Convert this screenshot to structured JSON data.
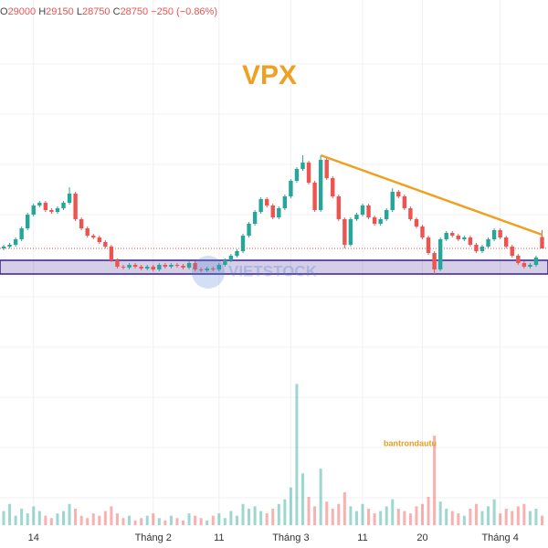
{
  "chart_data": {
    "type": "candlestick",
    "title": "VPX",
    "ohlc_labels": [
      "O",
      "H",
      "L",
      "C"
    ],
    "change_label": "−250 (−0.86%)",
    "annotation": "bantrondautu",
    "watermark": "VIETSTOCK",
    "up_color": "#26a69a",
    "down_color": "#ef5350",
    "title_color": "#f0a020",
    "trendline_color": "#f0a020",
    "zone_color": "#3a1f8c",
    "ylim": [
      26590,
      34190
    ],
    "volume_ylim": [
      0,
      320
    ],
    "xticks": [
      {
        "value": 5,
        "label": "14"
      },
      {
        "value": 25,
        "label": "Tháng 2"
      },
      {
        "value": 36,
        "label": "11"
      },
      {
        "value": 48,
        "label": "Tháng 3"
      },
      {
        "value": 60,
        "label": "11"
      },
      {
        "value": 70,
        "label": "20"
      },
      {
        "value": 83,
        "label": "Tháng 4"
      }
    ],
    "support_zone": [
      28190,
      28490
    ],
    "trendline": {
      "start": {
        "index": 53,
        "value": 30790
      },
      "end": {
        "index": 90,
        "value": 29050
      }
    },
    "open": [
      28750,
      28790,
      28830,
      28950,
      29190,
      29490,
      29690,
      29750,
      29590,
      29550,
      29630,
      29750,
      29950,
      29390,
      29190,
      29030,
      28990,
      28890,
      28790,
      28490,
      28350,
      28330,
      28390,
      28350,
      28310,
      28350,
      28290,
      28390,
      28350,
      28390,
      28370,
      28330,
      28430,
      28290,
      28270,
      28310,
      28290,
      28390,
      28490,
      28590,
      28690,
      29030,
      29290,
      29550,
      29830,
      29690,
      29430,
      29630,
      29890,
      30230,
      30490,
      30630,
      30190,
      29590,
      30690,
      30290,
      29890,
      29390,
      28830,
      29390,
      29490,
      29690,
      29430,
      29290,
      29390,
      29590,
      29990,
      29890,
      29630,
      29390,
      29230,
      28990,
      28650,
      28290,
      28950,
      29090,
      29030,
      28950,
      28990,
      28830,
      28690,
      28790,
      28950,
      29150,
      28990,
      28790,
      28590,
      28430,
      28350,
      28390,
      29000
    ],
    "high": [
      28830,
      28870,
      28990,
      29230,
      29530,
      29730,
      29790,
      29790,
      29630,
      29670,
      29790,
      30090,
      29990,
      29430,
      29230,
      29070,
      29030,
      28930,
      28830,
      28530,
      28390,
      28430,
      28430,
      28390,
      28390,
      28390,
      28430,
      28430,
      28430,
      28430,
      28410,
      28470,
      28470,
      28330,
      28350,
      28350,
      28430,
      28530,
      28630,
      28730,
      29070,
      29330,
      29590,
      29870,
      29870,
      29730,
      29670,
      29930,
      30270,
      30530,
      30790,
      30670,
      30230,
      30790,
      30730,
      30330,
      29930,
      29430,
      29430,
      29530,
      29730,
      29730,
      29470,
      29430,
      29630,
      30070,
      30030,
      29930,
      29670,
      29430,
      29270,
      29030,
      28690,
      28990,
      29130,
      29130,
      29070,
      29030,
      29030,
      28870,
      28830,
      28990,
      29190,
      29190,
      29030,
      28830,
      28630,
      28470,
      28430,
      28590,
      29150
    ],
    "low": [
      28710,
      28750,
      28790,
      28910,
      29150,
      29450,
      29650,
      29550,
      29510,
      29510,
      29590,
      29710,
      29350,
      29150,
      28990,
      28950,
      28850,
      28750,
      28450,
      28310,
      28290,
      28290,
      28310,
      28270,
      28270,
      28250,
      28250,
      28310,
      28310,
      28330,
      28290,
      28290,
      28250,
      28230,
      28230,
      28250,
      28250,
      28350,
      28450,
      28550,
      28650,
      28990,
      29250,
      29510,
      29650,
      29390,
      29390,
      29590,
      29850,
      30190,
      30450,
      30150,
      29550,
      29550,
      30250,
      29850,
      29350,
      28750,
      28790,
      29350,
      29450,
      29390,
      29250,
      29250,
      29350,
      29550,
      29850,
      29590,
      29350,
      29190,
      28950,
      28610,
      28190,
      28250,
      28910,
      28990,
      28910,
      28910,
      28790,
      28650,
      28650,
      28750,
      28910,
      28950,
      28750,
      28550,
      28390,
      28310,
      28310,
      28350,
      28750
    ],
    "close": [
      28790,
      28830,
      28950,
      29190,
      29490,
      29690,
      29750,
      29590,
      29550,
      29630,
      29750,
      29950,
      29390,
      29190,
      29030,
      28990,
      28890,
      28790,
      28490,
      28350,
      28330,
      28390,
      28350,
      28310,
      28350,
      28290,
      28390,
      28350,
      28390,
      28370,
      28330,
      28430,
      28290,
      28270,
      28310,
      28290,
      28390,
      28490,
      28590,
      28690,
      29030,
      29290,
      29550,
      29830,
      29690,
      29430,
      29630,
      29890,
      30230,
      30490,
      30630,
      30190,
      29590,
      30690,
      30290,
      29890,
      29390,
      28830,
      29390,
      29490,
      29690,
      29430,
      29290,
      29390,
      29590,
      29990,
      29890,
      29630,
      29390,
      29230,
      28990,
      28650,
      28290,
      28950,
      29090,
      29030,
      28950,
      28990,
      28830,
      28690,
      28790,
      28950,
      29150,
      28990,
      28790,
      28590,
      28430,
      28350,
      28390,
      28550,
      28750
    ],
    "volume": [
      30,
      45,
      20,
      35,
      25,
      40,
      30,
      20,
      15,
      25,
      30,
      45,
      35,
      20,
      15,
      25,
      20,
      30,
      40,
      25,
      15,
      20,
      10,
      15,
      20,
      25,
      15,
      10,
      20,
      15,
      10,
      25,
      20,
      15,
      10,
      20,
      25,
      15,
      30,
      20,
      45,
      35,
      40,
      30,
      25,
      35,
      45,
      55,
      80,
      300,
      110,
      60,
      40,
      120,
      50,
      35,
      45,
      70,
      40,
      30,
      45,
      35,
      25,
      30,
      40,
      55,
      35,
      30,
      25,
      40,
      45,
      60,
      190,
      50,
      35,
      30,
      25,
      20,
      35,
      45,
      30,
      40,
      55,
      25,
      35,
      30,
      40,
      45,
      30,
      35,
      20
    ]
  }
}
